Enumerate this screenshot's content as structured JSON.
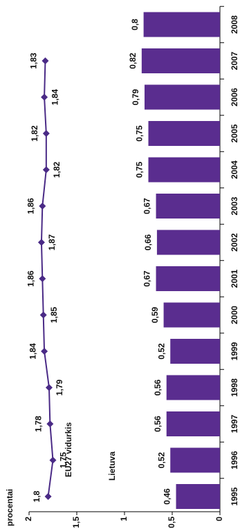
{
  "chart_data": {
    "type": "combo",
    "y_label": "procentai",
    "categories": [
      "1995",
      "1996",
      "1997",
      "1998",
      "1999",
      "2000",
      "2001",
      "2002",
      "2003",
      "2004",
      "2005",
      "2006",
      "2007",
      "2008"
    ],
    "series": [
      {
        "name": "Lietuva",
        "type": "bar",
        "color": "#5a2d8f",
        "values": [
          0.46,
          0.52,
          0.56,
          0.56,
          0.52,
          0.59,
          0.67,
          0.66,
          0.67,
          0.75,
          0.75,
          0.79,
          0.82,
          0.8
        ],
        "value_labels": [
          "0,46",
          "0,52",
          "0,56",
          "0,56",
          "0,52",
          "0,59",
          "0,67",
          "0,66",
          "0,67",
          "0,75",
          "0,75",
          "0,79",
          "0,82",
          "0,8"
        ]
      },
      {
        "name": "EU27 vidurkis",
        "type": "line",
        "color": "#4a2a86",
        "values": [
          1.8,
          1.75,
          1.78,
          1.79,
          1.84,
          1.85,
          1.86,
          1.87,
          1.86,
          1.82,
          1.82,
          1.84,
          1.83,
          null
        ],
        "value_labels": [
          "1,8",
          "1,75",
          "1,78",
          "1,79",
          "1,84",
          "1,85",
          "1,86",
          "1,87",
          "1,86",
          "1,82",
          "1,82",
          "1,84",
          "1,83",
          null
        ]
      }
    ],
    "ylim": [
      0,
      2
    ],
    "yticks": [
      0,
      {
        "value": 0.5,
        "label": "0,5"
      },
      1,
      {
        "value": 1.5,
        "label": "1,5"
      },
      2
    ]
  }
}
